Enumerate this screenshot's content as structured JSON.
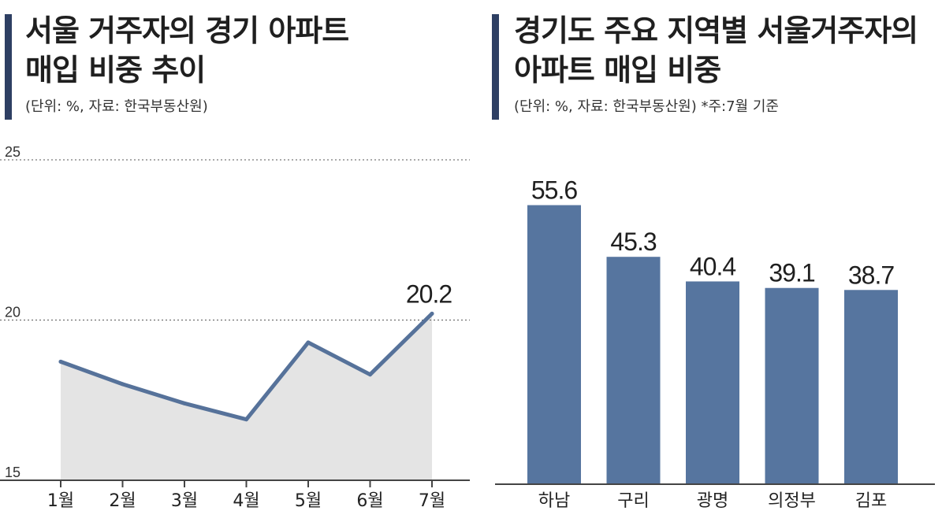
{
  "chart_data": [
    {
      "type": "area",
      "title": "서울 거주자의 경기 아파트 매입 비중 추이",
      "title_lines": [
        "서울 거주자의 경기 아파트",
        "매입 비중 추이"
      ],
      "subtitle": "(단위: %, 자료: 한국부동산원)",
      "categories": [
        "1월",
        "2월",
        "3월",
        "4월",
        "5월",
        "6월",
        "7월"
      ],
      "series": [
        {
          "values": [
            18.7,
            18.0,
            17.4,
            16.9,
            19.3,
            18.3,
            20.2
          ]
        }
      ],
      "data_labels": [
        {
          "category": "7월",
          "label": "20.2"
        }
      ],
      "ylim": [
        15,
        25
      ],
      "yticks": [
        "15",
        "20",
        "25"
      ],
      "grid": "dotted horizontal at 20 and 25",
      "line_color": "#56729a",
      "fill_color": "#e4e4e4"
    },
    {
      "type": "bar",
      "title": "경기도 주요 지역별 서울거주자의 아파트 매입 비중",
      "title_lines": [
        "경기도 주요 지역별 서울거주자의",
        "아파트 매입 비중"
      ],
      "subtitle": "(단위: %, 자료: 한국부동산원)  *주:7월 기준",
      "categories": [
        "하남",
        "구리",
        "광명",
        "의정부",
        "김포"
      ],
      "values": [
        55.6,
        45.3,
        40.4,
        39.1,
        38.7
      ],
      "value_labels": [
        "55.6",
        "45.3",
        "40.4",
        "39.1",
        "38.7"
      ],
      "ylim": [
        0,
        60
      ],
      "bar_color": "#56759f"
    }
  ],
  "colors": {
    "title_bar": "#2e3f63",
    "axis": "#444444"
  }
}
